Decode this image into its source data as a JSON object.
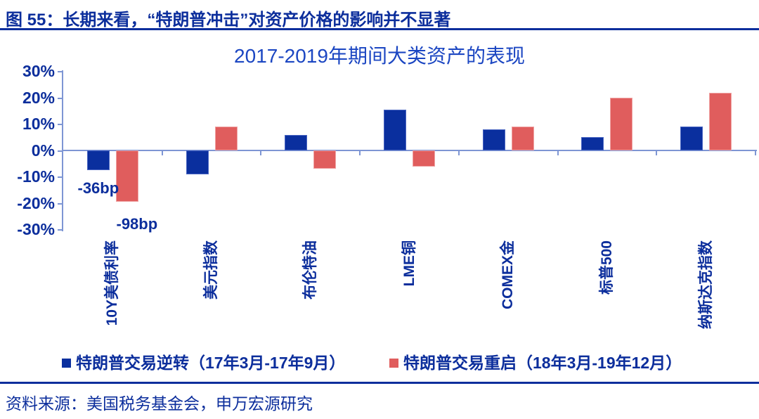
{
  "figure": {
    "title": "图 55：长期来看，“特朗普冲击”对资产价格的影响并不显著",
    "source": "资料来源：美国税务基金会，申万宏源研究"
  },
  "chart_data": {
    "type": "bar",
    "title": "2017-2019年期间大类资产的表现",
    "categories": [
      "10Y美债利率",
      "美元指数",
      "布伦特油",
      "LME铜",
      "COMEX金",
      "标普500",
      "纳斯达克指数"
    ],
    "series": [
      {
        "name": "特朗普交易逆转（17年3月-17年9月）",
        "color": "#0A2F9E",
        "values": [
          -7.5,
          -9,
          6,
          15.5,
          8,
          5,
          9
        ]
      },
      {
        "name": "特朗普交易重启（18年3月-19年12月）",
        "color": "#E05D5D",
        "values": [
          -19.5,
          9,
          -7,
          -6,
          9,
          20,
          22
        ]
      }
    ],
    "ylabel": "",
    "xlabel": "",
    "ylim": [
      -30,
      30
    ],
    "yticks": [
      "30%",
      "20%",
      "10%",
      "0%",
      "-10%",
      "-20%",
      "-30%"
    ],
    "grid": false,
    "legend_position": "bottom",
    "annotations": [
      {
        "text": "-36bp",
        "category": 0,
        "series": 0,
        "dx": 0,
        "gap": 13
      },
      {
        "text": "-98bp",
        "category": 0,
        "series": 1,
        "dx": 14,
        "gap": 19
      }
    ]
  },
  "colors": {
    "navy_text": "#0C2E9C",
    "title_blue": "#1B46C2",
    "bar_blue": "#0A2F9E",
    "bar_red": "#E05D5D",
    "axis_light_blue": "#7E96D4"
  }
}
